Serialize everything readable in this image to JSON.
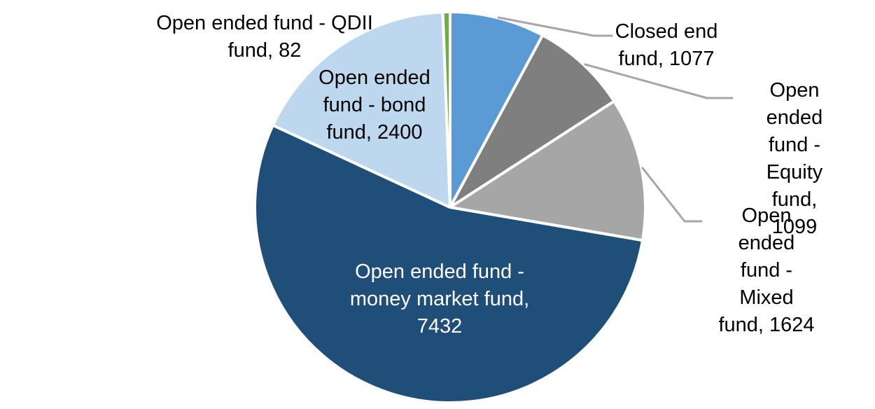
{
  "chart_data": {
    "type": "pie",
    "title": "",
    "legend": "none",
    "background_color": "#FFFFFF",
    "slice_border_color": "#FFFFFF",
    "leader_line_color": "#A6A6A6",
    "start_angle_deg": 0,
    "direction": "clockwise",
    "total": 13714,
    "slices": [
      {
        "id": "closed-end-fund",
        "category": "Closed end fund",
        "value": 1077,
        "color": "#5B9BD5",
        "label_text": "Closed end\nfund, 1077",
        "label_color": "#000000",
        "label_placement": "outside-right-top",
        "has_leader_line": true
      },
      {
        "id": "open-ended-equity-fund",
        "category": "Open ended fund - Equity fund",
        "value": 1099,
        "color": "#7F7F7F",
        "label_text": "Open ended\nfund - Equity\nfund, 1099",
        "label_color": "#000000",
        "label_placement": "outside-right",
        "has_leader_line": true
      },
      {
        "id": "open-ended-mixed-fund",
        "category": "Open ended fund - Mixed fund",
        "value": 1624,
        "color": "#A6A6A6",
        "label_text": "Open ended\nfund - Mixed\nfund, 1624",
        "label_color": "#000000",
        "label_placement": "outside-right-bottom",
        "has_leader_line": true
      },
      {
        "id": "open-ended-money-market-fund",
        "category": "Open ended fund - money market fund",
        "value": 7432,
        "color": "#1F4E79",
        "label_text": "Open ended fund -\nmoney market fund,\n7432",
        "label_color": "#FFFFFF",
        "label_placement": "inside",
        "has_leader_line": false
      },
      {
        "id": "open-ended-bond-fund",
        "category": "Open ended fund - bond fund",
        "value": 2400,
        "color": "#BDD7EE",
        "label_text": "Open ended\nfund - bond\nfund, 2400",
        "label_color": "#000000",
        "label_placement": "inside-top-left",
        "has_leader_line": false
      },
      {
        "id": "open-ended-qdii-fund",
        "category": "Open ended fund - QDII fund",
        "value": 82,
        "color": "#70AD47",
        "label_text": "Open ended fund - QDII\nfund, 82",
        "label_color": "#000000",
        "label_placement": "outside-top-left",
        "has_leader_line": false
      }
    ]
  }
}
